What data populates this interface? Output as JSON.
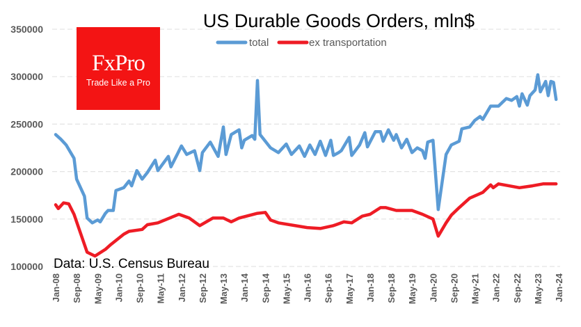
{
  "logo": {
    "brand": "FxPro",
    "tagline": "Trade Like a Pro",
    "color": "#f31414"
  },
  "chart_data": {
    "type": "line",
    "title": "US Durable Goods Orders, mln$",
    "source": "Data: U.S. Census Bureau",
    "xlabel": "",
    "ylabel": "",
    "x_unit": "month index since 2008-01 (0 = Jan-08, 192 = Jan-24)",
    "xlim": [
      0,
      192
    ],
    "ylim": [
      100000,
      350000
    ],
    "y_ticks": [
      100000,
      150000,
      200000,
      250000,
      300000,
      350000
    ],
    "y_tick_labels": [
      "100000",
      "150000",
      "200000",
      "250000",
      "300000",
      "350000"
    ],
    "x_tick_months": [
      0,
      8,
      16,
      24,
      32,
      40,
      48,
      56,
      64,
      72,
      80,
      88,
      96,
      104,
      112,
      120,
      128,
      136,
      144,
      152,
      160,
      168,
      176,
      184,
      192
    ],
    "x_tick_labels": [
      "Jan-08",
      "Sep-08",
      "May-09",
      "Jan-10",
      "Sep-10",
      "May-11",
      "Jan-12",
      "Sep-12",
      "May-13",
      "Jan-14",
      "Sep-14",
      "May-15",
      "Jan-16",
      "Sep-16",
      "May-17",
      "Jan-18",
      "Sep-18",
      "May-19",
      "Jan-20",
      "Sep-20",
      "May-21",
      "Jan-22",
      "Sep-22",
      "May-23",
      "Jan-24"
    ],
    "grid": "horizontal dashed",
    "legend_position": "top-center",
    "series": [
      {
        "name": "total",
        "color": "#5b9bd5",
        "x": [
          0,
          2,
          4,
          7,
          8,
          11,
          12,
          14,
          16,
          17,
          19,
          20,
          22,
          23,
          26,
          28,
          29,
          31,
          33,
          35,
          38,
          39,
          43,
          44,
          48,
          50,
          53,
          55,
          56,
          59,
          62,
          64,
          65,
          67,
          70,
          71,
          72,
          75,
          76,
          77,
          78,
          82,
          85,
          88,
          90,
          93,
          95,
          97,
          99,
          101,
          103,
          105,
          106,
          108,
          109,
          112,
          113,
          116,
          118,
          119,
          122,
          124,
          125,
          127,
          129,
          130,
          132,
          134,
          136,
          138,
          140,
          141,
          142,
          144,
          146,
          149,
          151,
          154,
          155,
          158,
          160,
          162,
          163,
          166,
          169,
          172,
          174,
          176,
          177,
          178,
          180,
          181,
          183,
          184,
          185,
          187,
          188,
          189,
          190,
          191
        ],
        "values": [
          239000,
          234000,
          228000,
          214000,
          192000,
          174000,
          151000,
          146000,
          149000,
          147000,
          156000,
          159000,
          159000,
          180000,
          183000,
          190000,
          185000,
          201000,
          192000,
          199000,
          212000,
          201000,
          216000,
          205000,
          227000,
          218000,
          222000,
          201000,
          220000,
          231000,
          216000,
          247000,
          218000,
          239000,
          244000,
          225000,
          233000,
          238000,
          234000,
          296000,
          239000,
          225000,
          220000,
          229000,
          218000,
          227000,
          216000,
          228000,
          218000,
          232000,
          217000,
          233000,
          217000,
          220000,
          222000,
          236000,
          217000,
          228000,
          241000,
          226000,
          242000,
          242000,
          232000,
          244000,
          233000,
          239000,
          225000,
          234000,
          220000,
          225000,
          222000,
          214000,
          231000,
          233000,
          160000,
          218000,
          228000,
          232000,
          245000,
          247000,
          254000,
          258000,
          255000,
          269000,
          269000,
          277000,
          275000,
          279000,
          269000,
          282000,
          270000,
          280000,
          286000,
          302000,
          284000,
          295000,
          280000,
          295000,
          294000,
          276000
        ]
      },
      {
        "name": "ex transportation",
        "color": "#ee1c25",
        "x": [
          0,
          1,
          3,
          5,
          7,
          9,
          12,
          15,
          19,
          21,
          26,
          28,
          33,
          35,
          39,
          47,
          51,
          55,
          60,
          64,
          67,
          70,
          77,
          80,
          82,
          85,
          96,
          101,
          106,
          107,
          110,
          113,
          117,
          120,
          124,
          126,
          130,
          136,
          140,
          144,
          146,
          149,
          151,
          154,
          158,
          163,
          166,
          167,
          169,
          173,
          177,
          182,
          186,
          191
        ],
        "values": [
          165000,
          161000,
          167000,
          166000,
          155000,
          139000,
          115000,
          111000,
          118000,
          123000,
          134000,
          137000,
          139000,
          144000,
          146000,
          155000,
          151000,
          143000,
          151000,
          151000,
          147000,
          151000,
          156000,
          157000,
          149000,
          146000,
          141000,
          140000,
          143000,
          144000,
          147000,
          146000,
          153000,
          155000,
          162000,
          162000,
          159000,
          159000,
          155000,
          150000,
          132000,
          146000,
          154000,
          162000,
          172000,
          178000,
          186000,
          183000,
          187000,
          185000,
          183000,
          185000,
          187000,
          187000
        ]
      }
    ]
  }
}
